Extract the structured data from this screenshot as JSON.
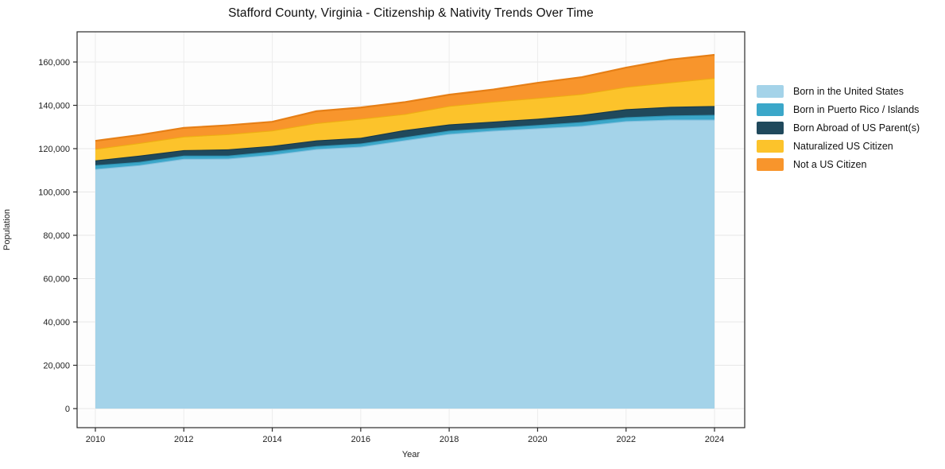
{
  "figure": {
    "title": "Stafford County, Virginia - Citizenship & Nativity Trends Over Time",
    "xlabel": "Year",
    "ylabel": "Population"
  },
  "chart_data": {
    "type": "area",
    "stacked": true,
    "title": "Stafford County, Virginia - Citizenship & Nativity Trends Over Time",
    "xlabel": "Year",
    "ylabel": "Population",
    "grid": true,
    "legend_position": "right",
    "x": [
      2010,
      2011,
      2012,
      2013,
      2014,
      2015,
      2016,
      2017,
      2018,
      2019,
      2020,
      2021,
      2022,
      2023,
      2024
    ],
    "xticks": [
      2010,
      2012,
      2014,
      2016,
      2018,
      2020,
      2022,
      2024
    ],
    "yticks": [
      0,
      20000,
      40000,
      60000,
      80000,
      100000,
      120000,
      140000,
      160000
    ],
    "ylim": [
      0,
      160000
    ],
    "series": [
      {
        "name": "Born in the United States",
        "color": "#a4d3e9",
        "edge_color": "#84c0de",
        "values": [
          110600,
          112400,
          115300,
          115400,
          117200,
          119800,
          120900,
          123900,
          126800,
          128300,
          129400,
          130500,
          132700,
          133400,
          133400
        ]
      },
      {
        "name": "Born in Puerto Rico / Islands",
        "color": "#3ba7c9",
        "edge_color": "#2e93b3",
        "values": [
          1800,
          1500,
          1500,
          1400,
          1500,
          1400,
          1500,
          1400,
          1500,
          1300,
          1500,
          1800,
          1800,
          1900,
          2200
        ]
      },
      {
        "name": "Born Abroad of US Parent(s)",
        "color": "#20495c",
        "edge_color": "#16384a",
        "values": [
          2200,
          2900,
          2500,
          2900,
          2600,
          2600,
          2600,
          3300,
          2900,
          2900,
          2900,
          3300,
          3700,
          4000,
          4100
        ]
      },
      {
        "name": "Naturalized US Citizen",
        "color": "#fcc32b",
        "edge_color": "#eead12",
        "values": [
          5300,
          5800,
          6300,
          7000,
          7100,
          8000,
          8800,
          7400,
          8500,
          9200,
          9600,
          9600,
          10300,
          11300,
          12900
        ]
      },
      {
        "name": "Not a US Citizen",
        "color": "#f8952c",
        "edge_color": "#e67f16",
        "values": [
          3700,
          3700,
          4000,
          4100,
          4000,
          5500,
          5200,
          5500,
          5200,
          5600,
          7000,
          7800,
          8900,
          10500,
          10700
        ]
      }
    ]
  }
}
